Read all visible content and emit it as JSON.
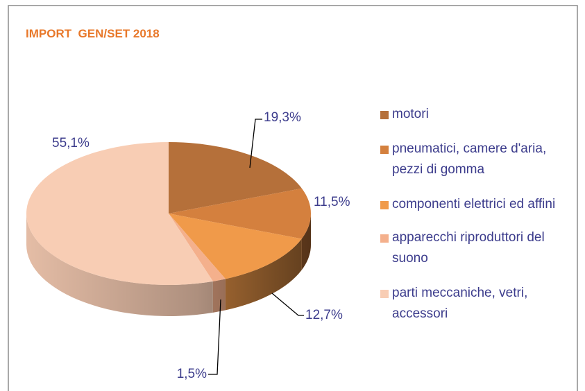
{
  "chart_data": {
    "type": "pie",
    "title": "IMPORT  GEN/SET 2018",
    "categories": [
      "motori",
      "pneumatici, camere d'aria, pezzi di gomma",
      "componenti elettrici ed affini",
      "apparecchi riproduttori del suono",
      "parti meccaniche, vetri, accessori"
    ],
    "values": [
      19.3,
      11.5,
      12.7,
      1.5,
      55.1
    ],
    "value_labels": [
      "19,3%",
      "11,5%",
      "12,7%",
      "1,5%",
      "55,1%"
    ],
    "colors": [
      "#b5703a",
      "#d4803e",
      "#f09a4a",
      "#f4b08c",
      "#f8cdb4"
    ],
    "legend": "right"
  }
}
